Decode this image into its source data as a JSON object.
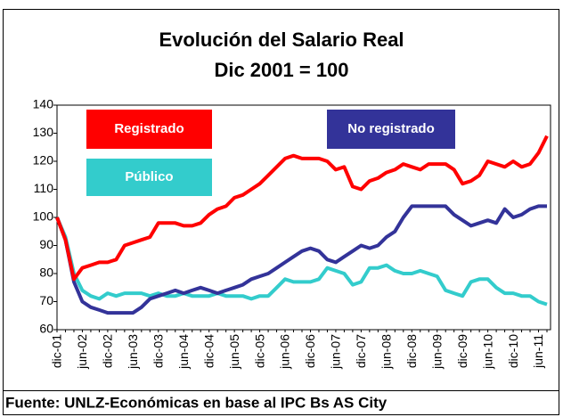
{
  "chart_data": {
    "type": "line",
    "title": "Evolución del Salario Real",
    "subtitle": "Dic 2001 = 100",
    "source": "Fuente: UNLZ-Económicas en base al IPC Bs AS City",
    "categories": [
      "dic-01",
      null,
      null,
      "jun-02",
      null,
      null,
      "dic-02",
      null,
      null,
      "jun-03",
      null,
      null,
      "dic-03",
      null,
      null,
      "jun-04",
      null,
      null,
      "dic-04",
      null,
      null,
      "jun-05",
      null,
      null,
      "dic-05",
      null,
      null,
      "jun-06",
      null,
      null,
      "dic-06",
      null,
      null,
      "jun-07",
      null,
      null,
      "dic-07",
      null,
      null,
      "jun-08",
      null,
      null,
      "dic-08",
      null,
      null,
      "jun-09",
      null,
      null,
      "dic-09",
      null,
      null,
      "jun-10",
      null,
      null,
      "dic-10",
      null,
      null,
      "jun-11",
      null
    ],
    "series": [
      {
        "name": "Registrado",
        "color": "#ff0000",
        "values": [
          100,
          92,
          78,
          82,
          83,
          84,
          84,
          85,
          90,
          91,
          92,
          93,
          98,
          98,
          98,
          97,
          97,
          98,
          101,
          103,
          104,
          107,
          108,
          110,
          112,
          115,
          118,
          121,
          122,
          121,
          121,
          121,
          120,
          117,
          118,
          111,
          110,
          113,
          114,
          116,
          117,
          119,
          118,
          117,
          119,
          119,
          119,
          117,
          112,
          113,
          115,
          120,
          119,
          118,
          120,
          118,
          119,
          123,
          129
        ]
      },
      {
        "name": "No registrado",
        "color": "#333399",
        "values": [
          100,
          92,
          77,
          70,
          68,
          67,
          66,
          66,
          66,
          66,
          68,
          71,
          72,
          73,
          74,
          73,
          74,
          75,
          74,
          73,
          74,
          75,
          76,
          78,
          79,
          80,
          82,
          84,
          86,
          88,
          89,
          88,
          85,
          84,
          86,
          88,
          90,
          89,
          90,
          93,
          95,
          100,
          104,
          104,
          104,
          104,
          104,
          101,
          99,
          97,
          98,
          99,
          98,
          103,
          100,
          101,
          103,
          104,
          104
        ]
      },
      {
        "name": "Público",
        "color": "#33cccc",
        "values": [
          100,
          93,
          80,
          74,
          72,
          71,
          73,
          72,
          73,
          73,
          73,
          72,
          73,
          72,
          72,
          73,
          72,
          72,
          72,
          73,
          72,
          72,
          72,
          71,
          72,
          72,
          75,
          78,
          77,
          77,
          77,
          78,
          82,
          81,
          80,
          76,
          77,
          82,
          82,
          83,
          81,
          80,
          80,
          81,
          80,
          79,
          74,
          73,
          72,
          77,
          78,
          78,
          75,
          73,
          73,
          72,
          72,
          70,
          69
        ]
      }
    ],
    "ylim": [
      60,
      140
    ],
    "yticks": [
      60,
      70,
      80,
      90,
      100,
      110,
      120,
      130,
      140
    ]
  }
}
